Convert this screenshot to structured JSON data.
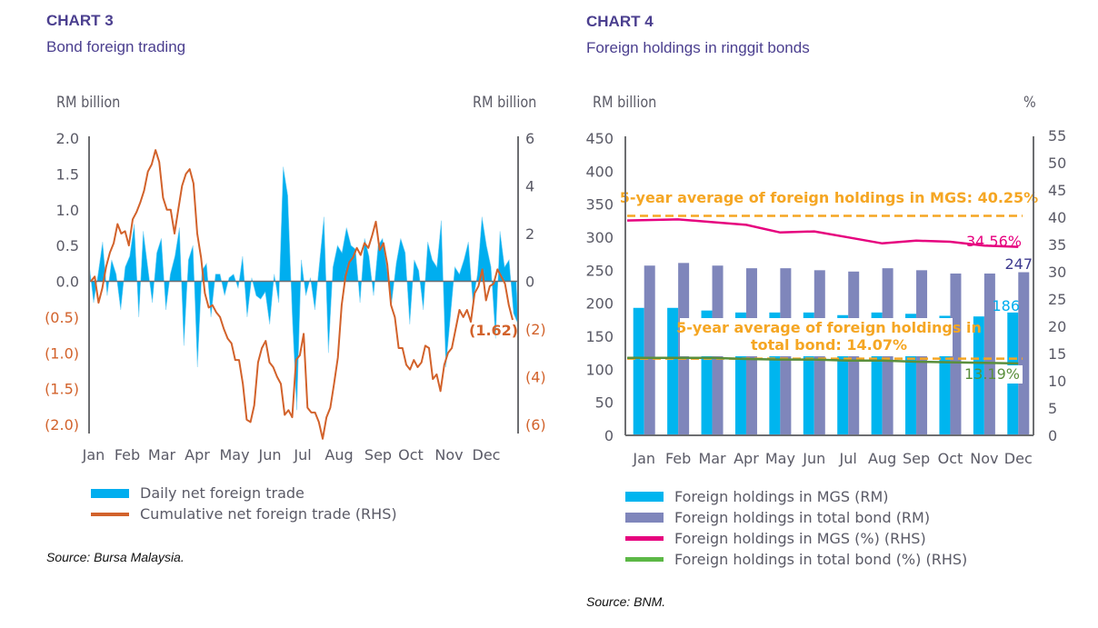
{
  "chart_data": [
    {
      "type": "bar+line",
      "label": "CHART 3",
      "title": "Bond foreign trading",
      "ylabel_left": "RM billion",
      "ylabel_right": "RM billion",
      "ylim_left": [
        -2.0,
        2.0
      ],
      "ylim_right": [
        -6,
        6
      ],
      "yticks_left": [
        "2.0",
        "1.5",
        "1.0",
        "0.5",
        "0.0",
        "(0.5)",
        "(1.0)",
        "(1.5)",
        "(2.0)"
      ],
      "yticks_right": [
        "6",
        "4",
        "2",
        "0",
        "(2)",
        "(4)",
        "(6)"
      ],
      "categories": [
        "Jan",
        "Feb",
        "Mar",
        "Apr",
        "May",
        "Jun",
        "Jul",
        "Aug",
        "Sep",
        "Oct",
        "Nov",
        "Dec"
      ],
      "series": [
        {
          "name": "Daily net foreign trade",
          "type": "area",
          "axis": "left",
          "color": "#00aeef",
          "values": [
            0.25,
            -0.3,
            0.1,
            0.55,
            -0.2,
            0.3,
            0.1,
            -0.4,
            0.2,
            0.35,
            0.8,
            -0.5,
            0.7,
            0.2,
            -0.3,
            0.4,
            0.6,
            -0.4,
            0.1,
            0.35,
            0.75,
            -0.9,
            0.3,
            0.5,
            -1.2,
            0.15,
            0.25,
            -0.5,
            0.1,
            0.1,
            -0.2,
            0.05,
            0.1,
            -0.1,
            0.35,
            -0.5,
            0.05,
            -0.2,
            -0.25,
            -0.15,
            -0.6,
            0.1,
            -0.3,
            1.6,
            1.2,
            -0.5,
            -1.8,
            0.3,
            -0.2,
            0.05,
            -0.4,
            0.25,
            0.9,
            -1.0,
            0.2,
            0.5,
            0.4,
            0.75,
            0.5,
            0.45,
            -0.3,
            0.6,
            0.35,
            -0.2,
            0.5,
            0.6,
            0.15,
            -0.3,
            0.25,
            0.6,
            0.4,
            -0.6,
            0.3,
            0.15,
            -0.4,
            0.55,
            0.3,
            0.2,
            0.85,
            -1.2,
            -0.5,
            0.2,
            0.1,
            0.3,
            0.55,
            -0.3,
            0.1,
            0.9,
            0.5,
            0.2,
            -0.8,
            0.7,
            0.2,
            0.3,
            -0.45,
            -0.6
          ]
        },
        {
          "name": "Cumulative net foreign trade (RHS)",
          "type": "line",
          "axis": "right",
          "color": "#d2622b",
          "values": [
            0,
            0.2,
            -0.9,
            -0.3,
            0.6,
            1.2,
            1.6,
            2.4,
            2.0,
            2.1,
            1.5,
            2.6,
            2.9,
            3.3,
            3.8,
            4.6,
            4.9,
            5.5,
            5.0,
            3.5,
            3.0,
            3.0,
            2.0,
            3.0,
            4.0,
            4.5,
            4.7,
            4.1,
            2.0,
            1.0,
            -0.5,
            -1.1,
            -1.0,
            -1.3,
            -1.5,
            -2.0,
            -2.4,
            -2.6,
            -3.3,
            -3.3,
            -4.3,
            -5.8,
            -5.9,
            -5.2,
            -3.4,
            -2.8,
            -2.5,
            -3.4,
            -3.6,
            -4.0,
            -4.3,
            -5.6,
            -5.4,
            -5.7,
            -3.3,
            -3.1,
            -2.2,
            -5.3,
            -5.5,
            -5.5,
            -5.9,
            -6.6,
            -5.7,
            -5.3,
            -4.3,
            -3.2,
            -1.0,
            0.2,
            0.8,
            1.0,
            1.4,
            1.1,
            1.6,
            1.4,
            1.9,
            2.5,
            1.3,
            1.6,
            0.7,
            -1.0,
            -1.5,
            -2.8,
            -2.8,
            -3.5,
            -3.7,
            -3.3,
            -3.6,
            -3.4,
            -2.7,
            -2.8,
            -4.1,
            -3.9,
            -4.6,
            -3.5,
            -3.0,
            -2.8,
            -2.0,
            -1.2,
            -1.5,
            -1.2,
            -1.7,
            -0.5,
            -0.2,
            0.5,
            -0.8,
            -0.2,
            -0.1,
            0.5,
            0.2,
            -0.1,
            -1.0,
            -1.62
          ]
        }
      ],
      "annotations": [
        "(1.62)"
      ],
      "source": "Source: Bursa Malaysia."
    },
    {
      "type": "bar+line",
      "label": "CHART 4",
      "title": "Foreign holdings in ringgit bonds",
      "ylabel_left": "RM billion",
      "ylabel_right": "%",
      "ylim_left": [
        0,
        450
      ],
      "ylim_right": [
        0,
        55
      ],
      "yticks_left": [
        "450",
        "400",
        "350",
        "300",
        "250",
        "200",
        "150",
        "100",
        "50",
        "0"
      ],
      "yticks_right": [
        "55",
        "50",
        "45",
        "40",
        "35",
        "30",
        "25",
        "20",
        "15",
        "10",
        "5",
        "0"
      ],
      "categories": [
        "Jan",
        "Feb",
        "Mar",
        "Apr",
        "May",
        "Jun",
        "Jul",
        "Aug",
        "Sep",
        "Oct",
        "Nov",
        "Dec"
      ],
      "series": [
        {
          "name": "Foreign holdings in MGS (RM)",
          "type": "bar",
          "axis": "left",
          "color": "#00b5ef",
          "values": [
            193,
            193,
            189,
            186,
            186,
            186,
            182,
            186,
            184,
            181,
            180,
            186
          ]
        },
        {
          "name": "Foreign holdings in total bond (RM)",
          "type": "bar",
          "axis": "left",
          "color": "#7f86bb",
          "values": [
            257,
            261,
            257,
            253,
            253,
            250,
            248,
            253,
            250,
            245,
            245,
            247
          ]
        },
        {
          "name": "Foreign holdings in MGS (%) (RHS)",
          "type": "line",
          "axis": "right",
          "color": "#e6007e",
          "values": [
            39.4,
            39.6,
            39.1,
            38.6,
            37.2,
            37.4,
            36.3,
            35.2,
            35.7,
            35.5,
            34.8,
            34.56
          ]
        },
        {
          "name": "Foreign holdings in total bond (%) (RHS)",
          "type": "line",
          "axis": "right",
          "color": "#5a8f3c",
          "values": [
            14.2,
            14.2,
            14.2,
            14.0,
            13.9,
            13.9,
            13.7,
            13.7,
            13.5,
            13.4,
            13.3,
            13.19
          ]
        }
      ],
      "reference_lines": [
        {
          "label": "5-year average of foreign holdings in MGS: 40.25%",
          "value": 40.25,
          "axis": "right",
          "color": "#f5a623"
        },
        {
          "label_line1": "5-year average of foreign holdings in",
          "label_line2": "total bond: 14.07%",
          "value": 14.07,
          "axis": "right",
          "color": "#f5a623"
        }
      ],
      "data_labels": {
        "mgs_pct_dec": "34.56%",
        "total_rm_dec": "247",
        "mgs_rm_dec": "186",
        "total_pct_dec": "13.19%"
      },
      "source": "Source: BNM."
    }
  ]
}
